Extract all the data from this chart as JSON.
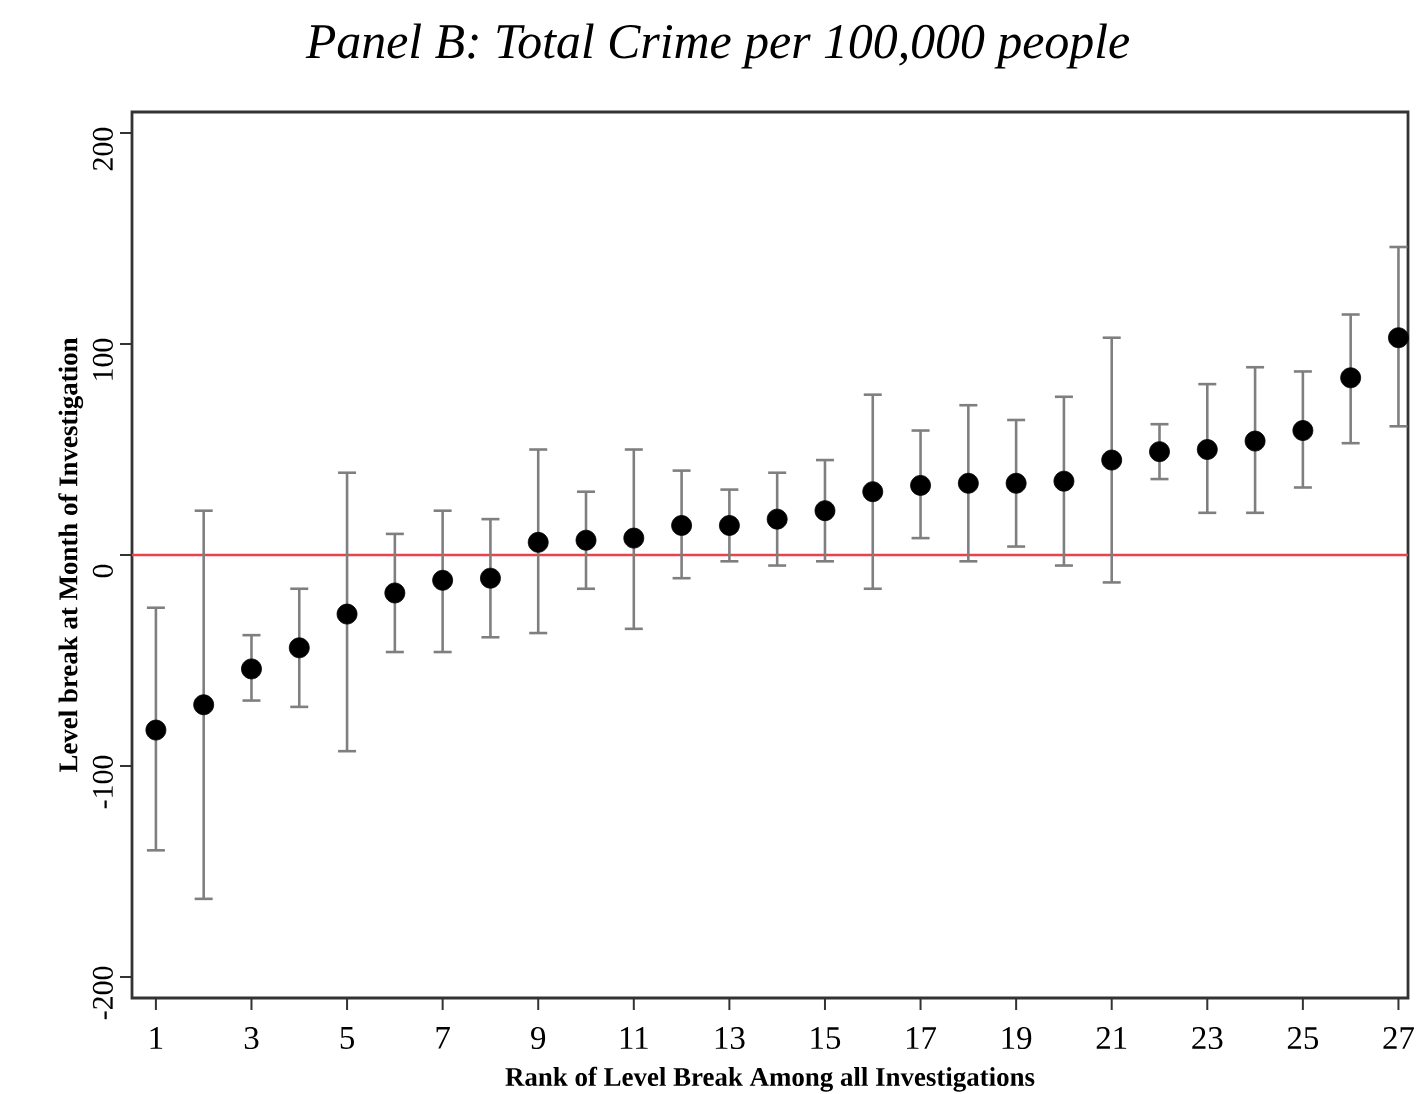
{
  "chart_data": {
    "type": "scatter",
    "title": "Panel B: Total Crime per 100,000 people",
    "xlabel": "Rank of Level Break Among all Investigations",
    "ylabel": "Level break at Month of Investigation",
    "x": [
      1,
      2,
      3,
      4,
      5,
      6,
      7,
      8,
      9,
      10,
      11,
      12,
      13,
      14,
      15,
      16,
      17,
      18,
      19,
      20,
      21,
      22,
      23,
      24,
      25,
      26,
      27
    ],
    "values": [
      -83,
      -71,
      -54,
      -44,
      -28,
      -18,
      -12,
      -11,
      6,
      7,
      8,
      14,
      14,
      17,
      21,
      30,
      33,
      34,
      34,
      35,
      45,
      49,
      50,
      54,
      59,
      84,
      103
    ],
    "errors": [
      [
        -140,
        -25
      ],
      [
        -163,
        21
      ],
      [
        -69,
        -38
      ],
      [
        -72,
        -16
      ],
      [
        -93,
        39
      ],
      [
        -46,
        10
      ],
      [
        -46,
        21
      ],
      [
        -39,
        17
      ],
      [
        -37,
        50
      ],
      [
        -16,
        30
      ],
      [
        -35,
        50
      ],
      [
        -11,
        40
      ],
      [
        -3,
        31
      ],
      [
        -5,
        39
      ],
      [
        -3,
        45
      ],
      [
        -16,
        76
      ],
      [
        8,
        59
      ],
      [
        -3,
        71
      ],
      [
        4,
        64
      ],
      [
        -5,
        75
      ],
      [
        -13,
        103
      ],
      [
        36,
        62
      ],
      [
        20,
        81
      ],
      [
        20,
        89
      ],
      [
        32,
        87
      ],
      [
        53,
        114
      ],
      [
        61,
        146
      ]
    ],
    "color": "#000000",
    "marker": "circle",
    "xlim": [
      0.5,
      27.2
    ],
    "xticks": [
      1,
      3,
      5,
      7,
      9,
      11,
      13,
      15,
      17,
      19,
      21,
      23,
      25,
      27
    ],
    "ylim": [
      -210,
      210
    ],
    "yticks": [
      -200,
      -100,
      0,
      100,
      200
    ],
    "ref_lines": [
      {
        "axis": "y",
        "value": 0,
        "color": "#e8424a"
      }
    ]
  }
}
